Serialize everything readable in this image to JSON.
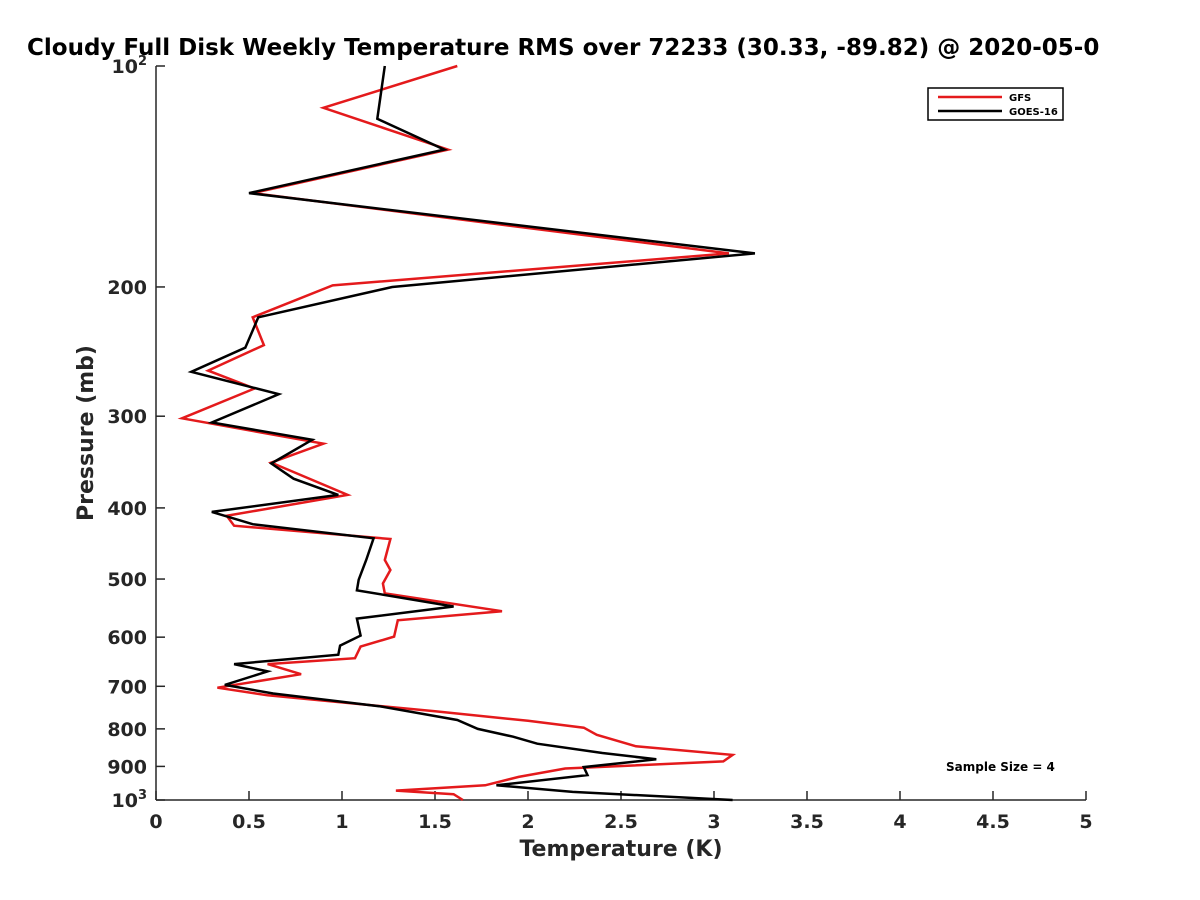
{
  "chart_data": {
    "type": "line",
    "title": "Cloudy Full Disk Weekly Temperature RMS over 72233 (30.33, -89.82) @ 2020-05-0",
    "xlabel": "Temperature (K)",
    "ylabel": "Pressure (mb)",
    "xlim": [
      0,
      5
    ],
    "ylim": [
      1000,
      100
    ],
    "y_scale": "log",
    "y_reversed": true,
    "x_ticks": [
      {
        "value": 0,
        "label": "0"
      },
      {
        "value": 0.5,
        "label": "0.5"
      },
      {
        "value": 1,
        "label": "1"
      },
      {
        "value": 1.5,
        "label": "1.5"
      },
      {
        "value": 2,
        "label": "2"
      },
      {
        "value": 2.5,
        "label": "2.5"
      },
      {
        "value": 3,
        "label": "3"
      },
      {
        "value": 3.5,
        "label": "3.5"
      },
      {
        "value": 4,
        "label": "4"
      },
      {
        "value": 4.5,
        "label": "4.5"
      },
      {
        "value": 5,
        "label": "5"
      }
    ],
    "y_ticks": [
      {
        "value": 100,
        "base": "10",
        "exp": "2"
      },
      {
        "value": 200,
        "base": "200",
        "exp": ""
      },
      {
        "value": 300,
        "base": "300",
        "exp": ""
      },
      {
        "value": 400,
        "base": "400",
        "exp": ""
      },
      {
        "value": 500,
        "base": "500",
        "exp": ""
      },
      {
        "value": 600,
        "base": "600",
        "exp": ""
      },
      {
        "value": 700,
        "base": "700",
        "exp": ""
      },
      {
        "value": 800,
        "base": "800",
        "exp": ""
      },
      {
        "value": 900,
        "base": "900",
        "exp": ""
      },
      {
        "value": 1000,
        "base": "10",
        "exp": "3"
      }
    ],
    "grid": false,
    "legend_position": "top-right",
    "annotation": "Sample Size = 4",
    "series": [
      {
        "name": "GFS",
        "color": "#e41a1c",
        "points": [
          [
            1.62,
            100
          ],
          [
            0.9,
            114
          ],
          [
            1.57,
            130
          ],
          [
            0.52,
            149
          ],
          [
            3.08,
            180
          ],
          [
            0.95,
            199
          ],
          [
            0.52,
            220
          ],
          [
            0.58,
            240
          ],
          [
            0.28,
            260
          ],
          [
            0.53,
            275
          ],
          [
            0.14,
            302
          ],
          [
            0.9,
            327
          ],
          [
            0.62,
            347
          ],
          [
            1.03,
            384
          ],
          [
            0.38,
            410
          ],
          [
            0.42,
            423
          ],
          [
            1.26,
            441
          ],
          [
            1.23,
            471
          ],
          [
            1.26,
            486
          ],
          [
            1.22,
            507
          ],
          [
            1.23,
            523
          ],
          [
            1.86,
            553
          ],
          [
            1.3,
            569
          ],
          [
            1.28,
            599
          ],
          [
            1.1,
            618
          ],
          [
            1.07,
            641
          ],
          [
            0.6,
            653
          ],
          [
            0.78,
            674
          ],
          [
            0.33,
            703
          ],
          [
            0.6,
            720
          ],
          [
            1.5,
            757
          ],
          [
            2.0,
            780
          ],
          [
            2.3,
            797
          ],
          [
            2.37,
            815
          ],
          [
            2.58,
            845
          ],
          [
            3.1,
            868
          ],
          [
            3.05,
            886
          ],
          [
            2.2,
            906
          ],
          [
            1.95,
            930
          ],
          [
            1.77,
            955
          ],
          [
            1.29,
            971
          ],
          [
            1.6,
            982
          ],
          [
            1.65,
            1000
          ]
        ]
      },
      {
        "name": "GOES-16",
        "color": "#000000",
        "points": [
          [
            1.23,
            100
          ],
          [
            1.19,
            118
          ],
          [
            1.55,
            130
          ],
          [
            0.5,
            149
          ],
          [
            3.22,
            180
          ],
          [
            1.27,
            200
          ],
          [
            0.55,
            220
          ],
          [
            0.48,
            242
          ],
          [
            0.19,
            261
          ],
          [
            0.66,
            280
          ],
          [
            0.3,
            306
          ],
          [
            0.84,
            323
          ],
          [
            0.62,
            348
          ],
          [
            0.74,
            365
          ],
          [
            0.98,
            384
          ],
          [
            0.3,
            405
          ],
          [
            0.52,
            421
          ],
          [
            1.17,
            440
          ],
          [
            1.13,
            471
          ],
          [
            1.09,
            501
          ],
          [
            1.08,
            518
          ],
          [
            1.6,
            545
          ],
          [
            1.08,
            566
          ],
          [
            1.1,
            597
          ],
          [
            0.99,
            616
          ],
          [
            0.98,
            634
          ],
          [
            0.42,
            653
          ],
          [
            0.6,
            668
          ],
          [
            0.37,
            697
          ],
          [
            0.63,
            716
          ],
          [
            1.2,
            745
          ],
          [
            1.62,
            778
          ],
          [
            1.73,
            800
          ],
          [
            1.92,
            820
          ],
          [
            2.05,
            838
          ],
          [
            2.4,
            863
          ],
          [
            2.69,
            880
          ],
          [
            2.3,
            902
          ],
          [
            2.32,
            925
          ],
          [
            1.83,
            955
          ],
          [
            2.24,
            975
          ],
          [
            3.1,
            1000
          ]
        ]
      }
    ]
  }
}
